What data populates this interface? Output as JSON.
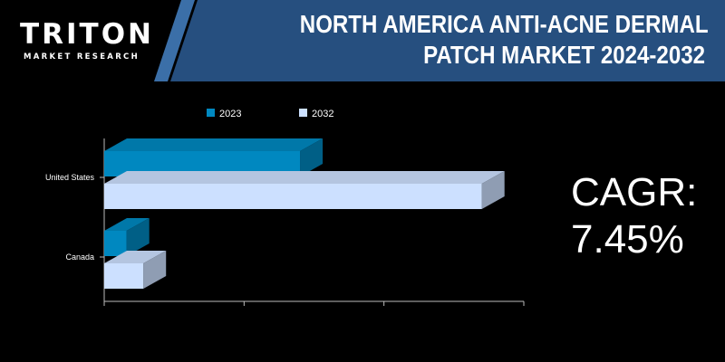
{
  "header": {
    "logo_name": "TRITON",
    "logo_subtitle": "MARKET RESEARCH",
    "title_line1": "NORTH AMERICA ANTI-ACNE DERMAL",
    "title_line2": "PATCH MARKET 2024-2032",
    "banner_color": "#264f7f",
    "accent_color": "#3b6fa8"
  },
  "cagr": {
    "label": "CAGR:",
    "value": "7.45%"
  },
  "chart_data": {
    "type": "bar",
    "orientation": "horizontal",
    "style": "3d",
    "categories": [
      "United States",
      "Canada"
    ],
    "series": [
      {
        "name": "2023",
        "color": "#0088c0",
        "values": [
          70,
          8
        ]
      },
      {
        "name": "2032",
        "color": "#cce0ff",
        "values": [
          135,
          14
        ]
      }
    ],
    "xlim": [
      0,
      150
    ],
    "x_ticks_labeled": false,
    "grid": false,
    "legend_position": "top"
  }
}
